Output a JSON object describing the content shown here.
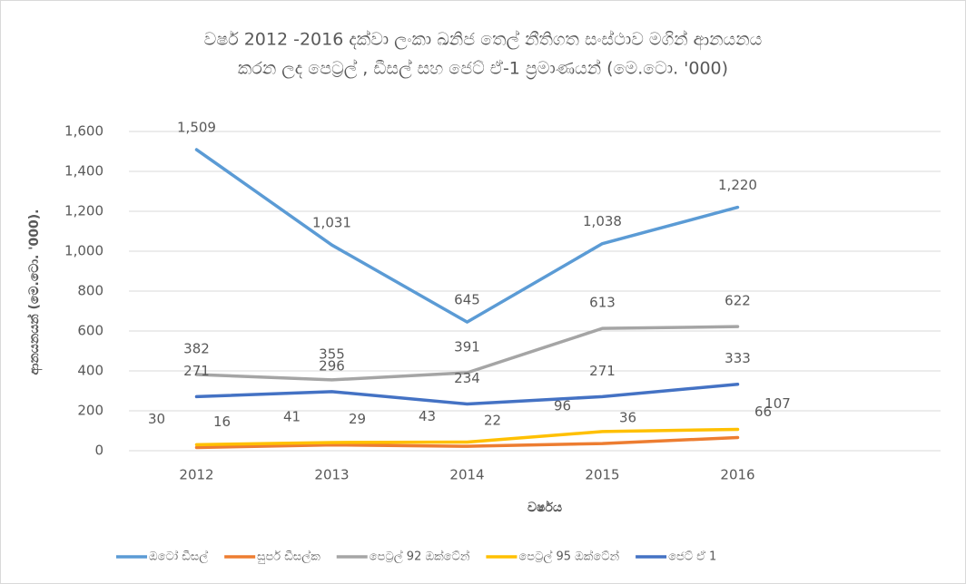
{
  "chart_data": {
    "type": "line",
    "title": "වර්ෂ 2012 -2016 දක්වා ලංකා ඛනිජ තෙල් නීතිගත සංස්ථාව මගින් ආනයනය",
    "subtitle": "කරන ලද  පෙට්‍රල් , ඩීසල් සහ ජෙට් ඒ-1 ප්‍රමාණයන් (මෙ.ටො. '000)",
    "x_label": "වර්ෂය",
    "y_label": "ආනයනයන් (මෙ.ටො. '000).",
    "categories": [
      "2012",
      "2013",
      "2014",
      "2015",
      "2016"
    ],
    "ylim": [
      0,
      1600
    ],
    "yticks": [
      0,
      200,
      400,
      600,
      800,
      {
        "value": 1000,
        "label": "1,000"
      },
      {
        "value": 1200,
        "label": "1,200"
      },
      {
        "value": 1400,
        "label": "1,400"
      },
      {
        "value": 1600,
        "label": "1,600"
      }
    ],
    "grid": true,
    "legend": "bottom",
    "series": [
      {
        "name": "ඔටෝ ඩීසල්",
        "color": "#5b9bd5",
        "values": [
          1509,
          1031,
          645,
          1038,
          1220
        ],
        "value_labels": [
          "1,509",
          "1,031",
          "645",
          "1,038",
          "1,220"
        ]
      },
      {
        "name": "සුපර් ඩීසල්ක",
        "color": "#ed7d31",
        "values": [
          16,
          29,
          22,
          36,
          66
        ]
      },
      {
        "name": "පෙට්‍රල් 92 ඔක්ටේන්",
        "color": "#a5a5a5",
        "values": [
          382,
          355,
          391,
          613,
          622
        ]
      },
      {
        "name": "පෙට්‍රල් 95 ඔක්ටේන්",
        "color": "#ffc000",
        "values": [
          30,
          41,
          43,
          96,
          107
        ]
      },
      {
        "name": "ජෙට් ඒ 1",
        "color": "#4472c4",
        "values": [
          271,
          296,
          234,
          271,
          333
        ]
      }
    ]
  }
}
